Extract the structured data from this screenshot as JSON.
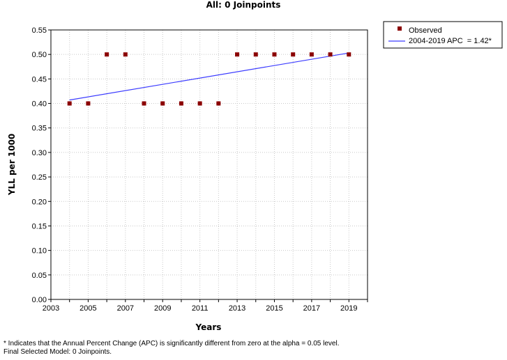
{
  "chart_data": {
    "type": "scatter",
    "title": "All: 0 Joinpoints",
    "xlabel": "Years",
    "ylabel": "YLL per 1000",
    "xlim": [
      2003,
      2020
    ],
    "ylim": [
      0,
      0.55
    ],
    "x_ticks": [
      "2003",
      "2005",
      "2007",
      "2009",
      "2011",
      "2013",
      "2015",
      "2017",
      "2019"
    ],
    "y_ticks": [
      "0.00",
      "0.05",
      "0.10",
      "0.15",
      "0.20",
      "0.25",
      "0.30",
      "0.35",
      "0.40",
      "0.45",
      "0.50",
      "0.55"
    ],
    "grid": true,
    "legend_position": "top-right",
    "series": [
      {
        "name": "Observed",
        "kind": "points",
        "color": "#8b0000",
        "x": [
          2004,
          2005,
          2006,
          2007,
          2008,
          2009,
          2010,
          2011,
          2012,
          2013,
          2014,
          2015,
          2016,
          2017,
          2018,
          2019
        ],
        "y": [
          0.4,
          0.4,
          0.5,
          0.5,
          0.4,
          0.4,
          0.4,
          0.4,
          0.4,
          0.5,
          0.5,
          0.5,
          0.5,
          0.5,
          0.5,
          0.5
        ]
      },
      {
        "name": "2004-2019 APC  = 1.42*",
        "kind": "line",
        "color": "#3b3bff",
        "x": [
          2004,
          2019
        ],
        "y": [
          0.407,
          0.503
        ]
      }
    ]
  },
  "footnotes": [
    "* Indicates that the Annual Percent Change (APC) is significantly different from zero at the alpha = 0.05 level.",
    "Final Selected Model: 0 Joinpoints."
  ]
}
